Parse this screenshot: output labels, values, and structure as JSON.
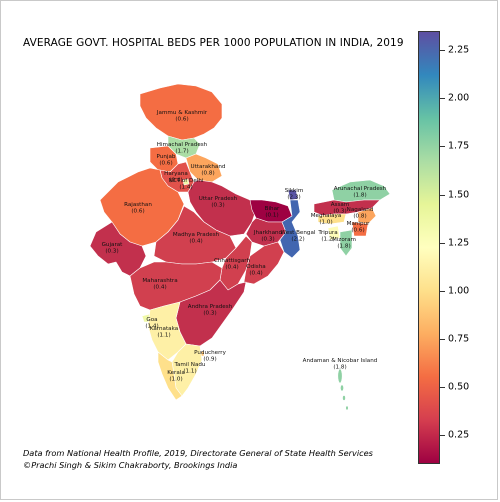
{
  "title": "AVERAGE GOVT. HOSPITAL BEDS PER 1000 POPULATION IN INDIA, 2019",
  "source_line1": "Data from National Health Profile, 2019, Directorate General of State Health Services",
  "source_line2": "©Prachi Singh & Sikim Chakraborty, Brookings India",
  "colorbar": {
    "min": 0.1,
    "max": 2.35,
    "colormap": "Spectral",
    "stops": [
      "#9e0142",
      "#d53e4f",
      "#f46d43",
      "#fdae61",
      "#fee08b",
      "#ffffbf",
      "#e6f598",
      "#abdda4",
      "#66c2a5",
      "#3288bd",
      "#5e4fa2"
    ],
    "ticks": [
      "0.25",
      "0.50",
      "0.75",
      "1.00",
      "1.25",
      "1.50",
      "1.75",
      "2.00",
      "2.25"
    ]
  },
  "regions": [
    {
      "name": "Jammu & Kashmir",
      "value": "(0.6)",
      "color": "#f46d43"
    },
    {
      "name": "Himachal Pradesh",
      "value": "(1.7)",
      "color": "#abdda4"
    },
    {
      "name": "Punjab",
      "value": "(0.6)",
      "color": "#f46d43"
    },
    {
      "name": "Uttarakhand",
      "value": "(0.8)",
      "color": "#fca55d"
    },
    {
      "name": "Haryana",
      "value": "(0.4)",
      "color": "#e1524b"
    },
    {
      "name": "NCT of Delhi",
      "value": "(1.4)",
      "color": "#f0f9a8"
    },
    {
      "name": "Rajasthan",
      "value": "(0.6)",
      "color": "#f46d43"
    },
    {
      "name": "Uttar Pradesh",
      "value": "(0.3)",
      "color": "#c2304d"
    },
    {
      "name": "Bihar",
      "value": "(0.1)",
      "color": "#9e0142"
    },
    {
      "name": "Sikkim",
      "value": "(2.3)",
      "color": "#5a55a6"
    },
    {
      "name": "Arunachal Pradesh",
      "value": "(1.8)",
      "color": "#8fd1a4"
    },
    {
      "name": "Assam",
      "value": "(0.3)",
      "color": "#c2304d"
    },
    {
      "name": "Nagaland",
      "value": "(0.8)",
      "color": "#fca55d"
    },
    {
      "name": "Meghalaya",
      "value": "(1.0)",
      "color": "#fee08b"
    },
    {
      "name": "Manipur",
      "value": "(0.6)",
      "color": "#f46d43"
    },
    {
      "name": "Tripura",
      "value": "(1.2)",
      "color": "#fefcb8"
    },
    {
      "name": "Mizoram",
      "value": "(1.8)",
      "color": "#8fd1a4"
    },
    {
      "name": "Gujarat",
      "value": "(0.3)",
      "color": "#c2304d"
    },
    {
      "name": "Madhya Pradesh",
      "value": "(0.4)",
      "color": "#d1404f"
    },
    {
      "name": "Jharkhand",
      "value": "(0.3)",
      "color": "#c2304d"
    },
    {
      "name": "West Bengal",
      "value": "(2.2)",
      "color": "#4266b0"
    },
    {
      "name": "Chhattisgarh",
      "value": "(0.4)",
      "color": "#d1404f"
    },
    {
      "name": "Odisha",
      "value": "(0.4)",
      "color": "#d1404f"
    },
    {
      "name": "Maharashtra",
      "value": "(0.4)",
      "color": "#d1404f"
    },
    {
      "name": "Andhra Pradesh",
      "value": "(0.3)",
      "color": "#c2304d"
    },
    {
      "name": "Goa",
      "value": "(1.4)",
      "color": "#f0f9a8"
    },
    {
      "name": "Karnataka",
      "value": "(1.1)",
      "color": "#fef0a6"
    },
    {
      "name": "Puducherry",
      "value": "(0.9)",
      "color": "#fdc474"
    },
    {
      "name": "Tamil Nadu",
      "value": "(1.1)",
      "color": "#fef0a6"
    },
    {
      "name": "Kerala",
      "value": "(1.0)",
      "color": "#fee08b"
    },
    {
      "name": "Andaman & Nicobar Island",
      "value": "(1.8)",
      "color": "#8fd1a4"
    }
  ]
}
